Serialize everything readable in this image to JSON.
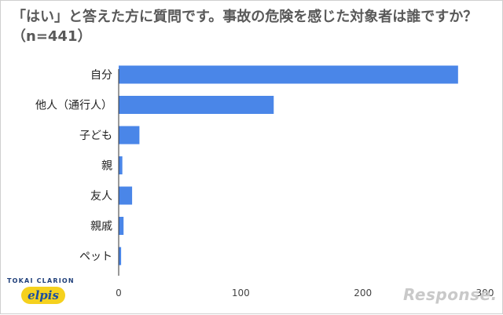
{
  "chart_data": {
    "type": "bar",
    "orientation": "horizontal",
    "title": "「はい」と答えた方に質問です。事故の危険を感じた対象者は誰ですか？（n=441）",
    "categories": [
      "自分",
      "他人（通行人）",
      "子ども",
      "親",
      "友人",
      "親戚",
      "ペット"
    ],
    "values": [
      278,
      127,
      17,
      3,
      11,
      4,
      2
    ],
    "xlim": [
      0,
      300
    ],
    "xticks": [
      0,
      100,
      200,
      300
    ],
    "bar_color": "#4a86e8",
    "grid": false
  },
  "branding": {
    "company": "TOKAI CLARION",
    "logo": "elpis",
    "watermark": "Response."
  }
}
